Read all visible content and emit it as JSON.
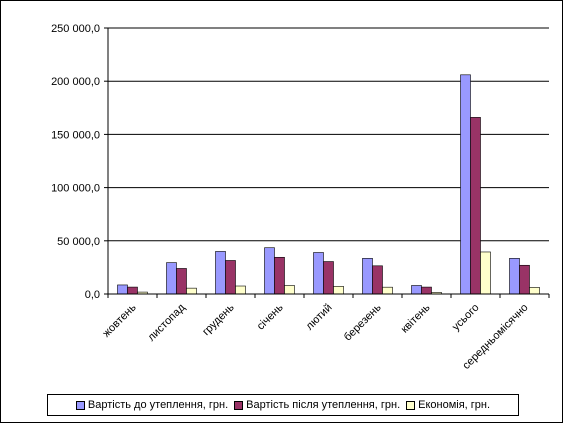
{
  "chart_data": {
    "type": "bar",
    "ylabel": "",
    "ylim": [
      0,
      250000
    ],
    "yticks": [
      "0,0",
      "50 000,0",
      "100 000,0",
      "150 000,0",
      "200 000,0",
      "250 000,0"
    ],
    "categories": [
      "жовтень",
      "листопад",
      "грудень",
      "січень",
      "лютий",
      "березень",
      "квітень",
      "усього",
      "середньомісячно"
    ],
    "grid": true,
    "legend_position": "bottom",
    "series": [
      {
        "name": "Вартість до утеплення, грн.",
        "color": "#9999ff",
        "values": [
          8500,
          29500,
          40000,
          43500,
          39000,
          33500,
          8000,
          206000,
          33500
        ]
      },
      {
        "name": "Вартість після утеплення, грн.",
        "color": "#993366",
        "values": [
          6500,
          24000,
          31500,
          34500,
          30500,
          26500,
          6500,
          166000,
          27000
        ]
      },
      {
        "name": "Економія, грн.",
        "color": "#ffffcc",
        "values": [
          1800,
          5500,
          7500,
          8000,
          7200,
          6400,
          1500,
          39500,
          6200
        ]
      }
    ]
  }
}
